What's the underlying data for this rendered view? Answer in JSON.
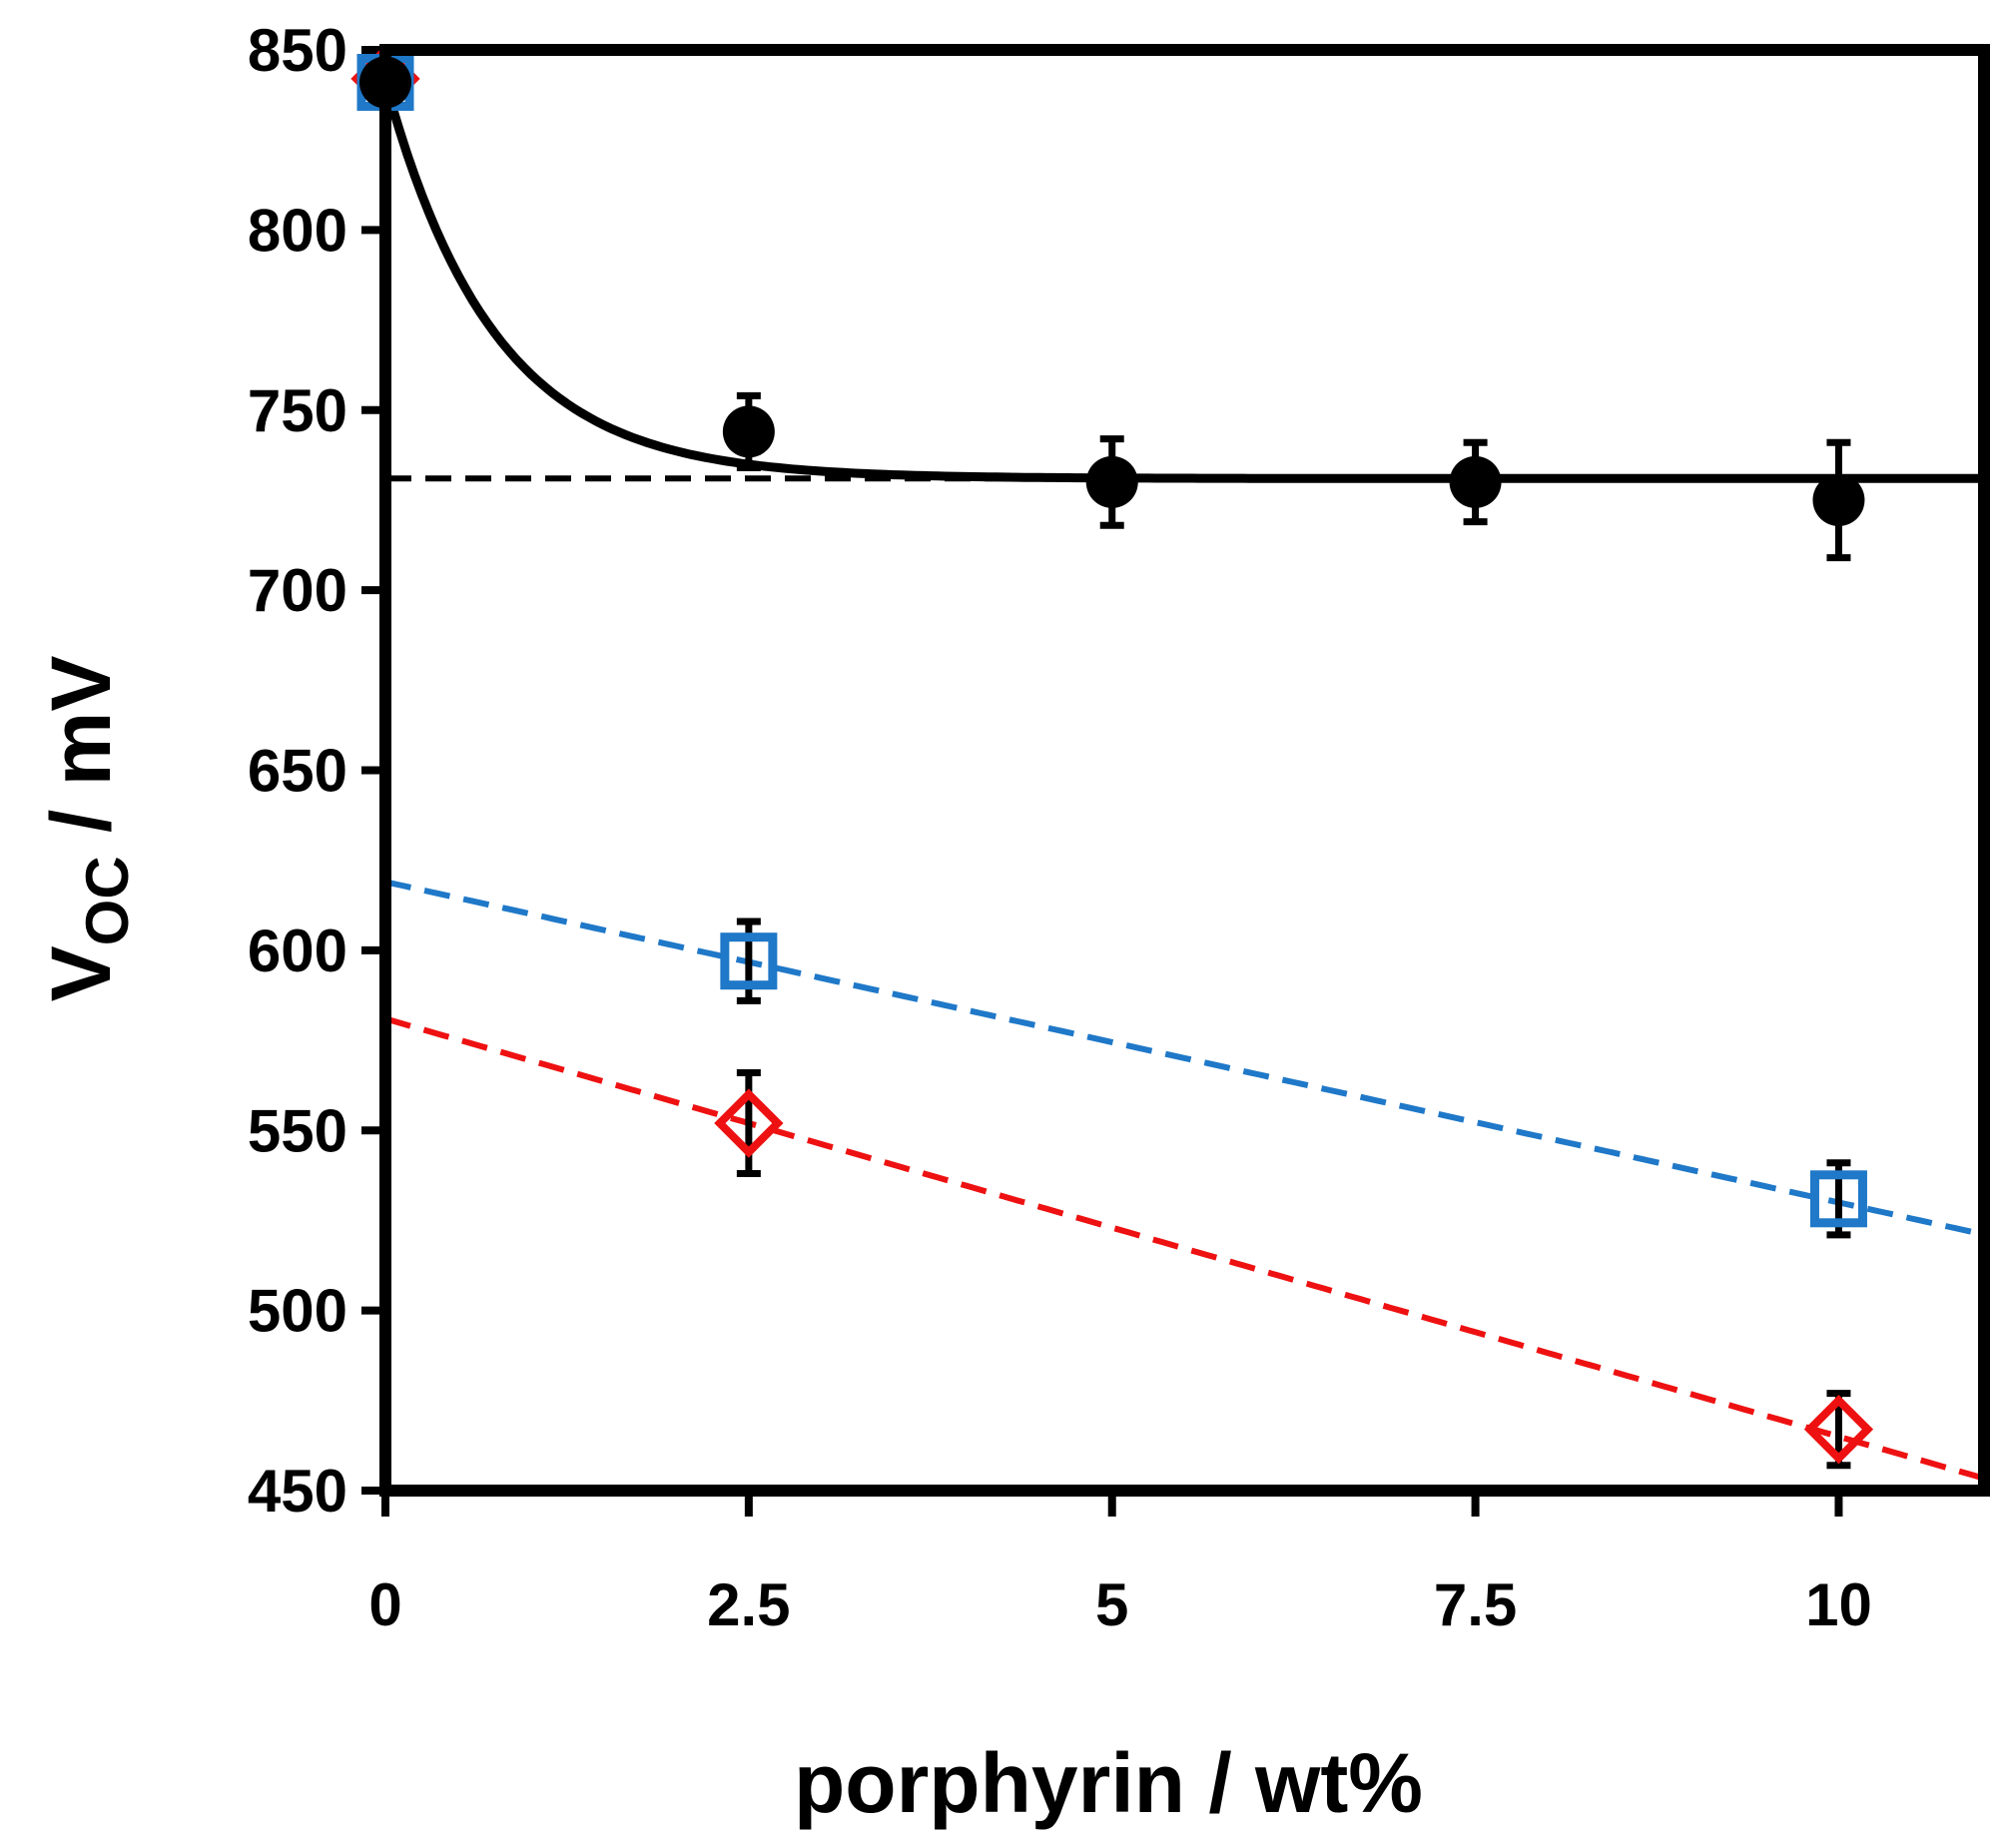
{
  "chart_data": {
    "type": "scatter",
    "title": "",
    "xlabel": "porphyrin / wt%",
    "ylabel_main": "V",
    "ylabel_sub": "OC",
    "ylabel_unit": " / mV",
    "xlim": [
      0,
      11
    ],
    "ylim": [
      450,
      850
    ],
    "x_ticks": [
      0,
      2.5,
      5,
      7.5,
      10
    ],
    "x_tick_labels": [
      "0",
      "2.5",
      "5",
      "7.5",
      "10"
    ],
    "y_ticks": [
      450,
      500,
      550,
      600,
      650,
      700,
      750,
      800,
      850
    ],
    "y_tick_labels": [
      "450",
      "500",
      "550",
      "600",
      "650",
      "700",
      "750",
      "800",
      "850"
    ],
    "grid": false,
    "colors": {
      "black": "#000000",
      "blue": "#1f78c8",
      "red": "#ee1111"
    },
    "series": [
      {
        "name": "black circles",
        "marker": "circle",
        "color": "#000000",
        "points": [
          {
            "x": 0,
            "y": 841,
            "err": 0
          },
          {
            "x": 2.5,
            "y": 744,
            "err": 10
          },
          {
            "x": 5,
            "y": 730,
            "err": 12
          },
          {
            "x": 7.5,
            "y": 730,
            "err": 11
          },
          {
            "x": 10,
            "y": 725,
            "err": 16
          }
        ]
      },
      {
        "name": "blue squares",
        "marker": "square",
        "color": "#1f78c8",
        "points": [
          {
            "x": 0,
            "y": 841,
            "err": 0
          },
          {
            "x": 2.5,
            "y": 597,
            "err": 11
          },
          {
            "x": 10,
            "y": 531,
            "err": 10
          }
        ]
      },
      {
        "name": "red diamonds",
        "marker": "diamond",
        "color": "#ee1111",
        "points": [
          {
            "x": 0,
            "y": 842,
            "err": 0
          },
          {
            "x": 2.5,
            "y": 552,
            "err": 14
          },
          {
            "x": 10,
            "y": 467,
            "err": 10
          }
        ]
      }
    ],
    "fits": [
      {
        "name": "black exponential fit",
        "style": "solid",
        "color": "#000000",
        "form": "exp_decay",
        "y0": 731,
        "amplitude": 110,
        "tau": 0.75,
        "x_range": [
          0,
          11
        ]
      },
      {
        "name": "black plateau",
        "style": "dashed",
        "color": "#000000",
        "form": "linear",
        "intercept": 731,
        "slope": 0,
        "x_range": [
          0,
          11
        ]
      },
      {
        "name": "blue linear fit",
        "style": "dashed",
        "color": "#1f78c8",
        "form": "linear",
        "intercept": 619,
        "slope": -8.9,
        "x_range": [
          0,
          11
        ]
      },
      {
        "name": "red linear fit",
        "style": "dashed",
        "color": "#ee1111",
        "form": "linear",
        "intercept": 581,
        "slope": -11.6,
        "x_range": [
          0,
          11
        ]
      }
    ]
  }
}
